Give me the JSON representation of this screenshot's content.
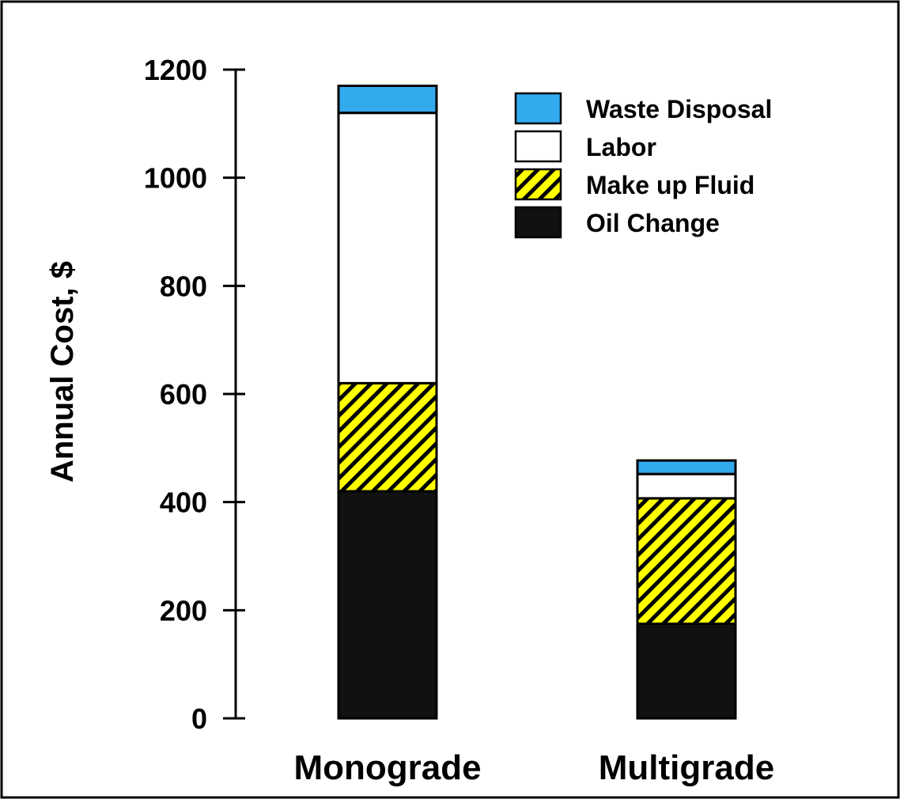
{
  "chart_data": {
    "type": "bar",
    "stacked": true,
    "title": "",
    "xlabel": "",
    "ylabel": "Annual Cost, $",
    "ylim": [
      0,
      1200
    ],
    "yticks": [
      0,
      200,
      400,
      600,
      800,
      1000,
      1200
    ],
    "grid": false,
    "legend_position": "top-right",
    "categories": [
      "Monograde",
      "Multigrade"
    ],
    "series": [
      {
        "name": "Oil Change",
        "values": [
          420,
          175
        ],
        "color": "#111111",
        "pattern": "solid"
      },
      {
        "name": "Make up Fluid",
        "values": [
          200,
          232
        ],
        "color": "#ffff00",
        "pattern": "diagonal-hatch"
      },
      {
        "name": "Labor",
        "values": [
          500,
          45
        ],
        "color": "#ffffff",
        "pattern": "solid"
      },
      {
        "name": "Waste Disposal",
        "values": [
          50,
          25
        ],
        "color": "#33aaee",
        "pattern": "solid"
      }
    ],
    "legend_order": [
      "Waste Disposal",
      "Labor",
      "Make up Fluid",
      "Oil Change"
    ]
  }
}
